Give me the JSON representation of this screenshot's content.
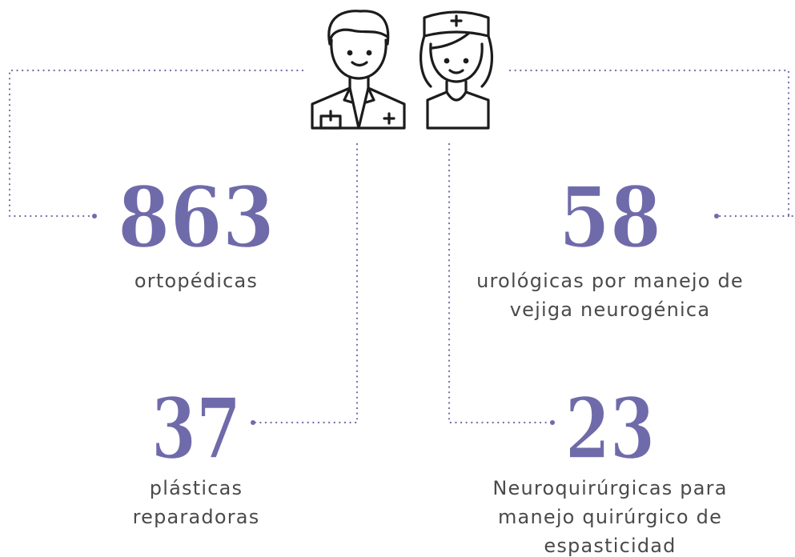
{
  "stats": [
    {
      "number": "863",
      "label_lines": [
        "ortopédicas"
      ]
    },
    {
      "number": "58",
      "label_lines": [
        "urológicas por manejo de",
        "vejiga neurogénica"
      ]
    },
    {
      "number": "37",
      "label_lines": [
        "plásticas",
        "reparadoras"
      ]
    },
    {
      "number": "23",
      "label_lines": [
        "Neuroquirúrgicas para",
        "manejo quirúrgico de",
        "espasticidad"
      ]
    }
  ]
}
